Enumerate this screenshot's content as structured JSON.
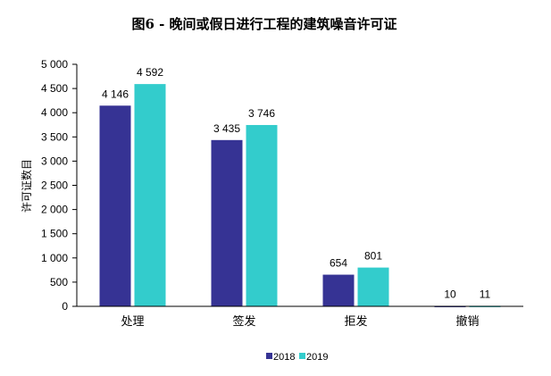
{
  "chart_data": {
    "type": "bar",
    "title": "图6 - 晚间或假日进行工程的建筑噪音许可证",
    "xlabel": "",
    "ylabel": "许可证数目",
    "categories": [
      "处理",
      "签发",
      "拒发",
      "撤销"
    ],
    "series": [
      {
        "name": "2018",
        "values": [
          4146,
          3435,
          654,
          10
        ],
        "labels": [
          "4 146",
          "3 435",
          "654",
          "10"
        ],
        "color": "#363394"
      },
      {
        "name": "2019",
        "values": [
          4592,
          3746,
          801,
          11
        ],
        "labels": [
          "4 592",
          "3 746",
          "801",
          "11"
        ],
        "color": "#33CCCC"
      }
    ],
    "ylim": [
      0,
      5000
    ],
    "yticks": [
      0,
      500,
      1000,
      1500,
      2000,
      2500,
      3000,
      3500,
      4000,
      4500,
      5000
    ],
    "ytick_labels": [
      "0",
      "500",
      "1 000",
      "1 500",
      "2 000",
      "2 500",
      "3 000",
      "3 500",
      "4 000",
      "4 500",
      "5 000"
    ],
    "grid": false,
    "legend_position": "bottom"
  }
}
